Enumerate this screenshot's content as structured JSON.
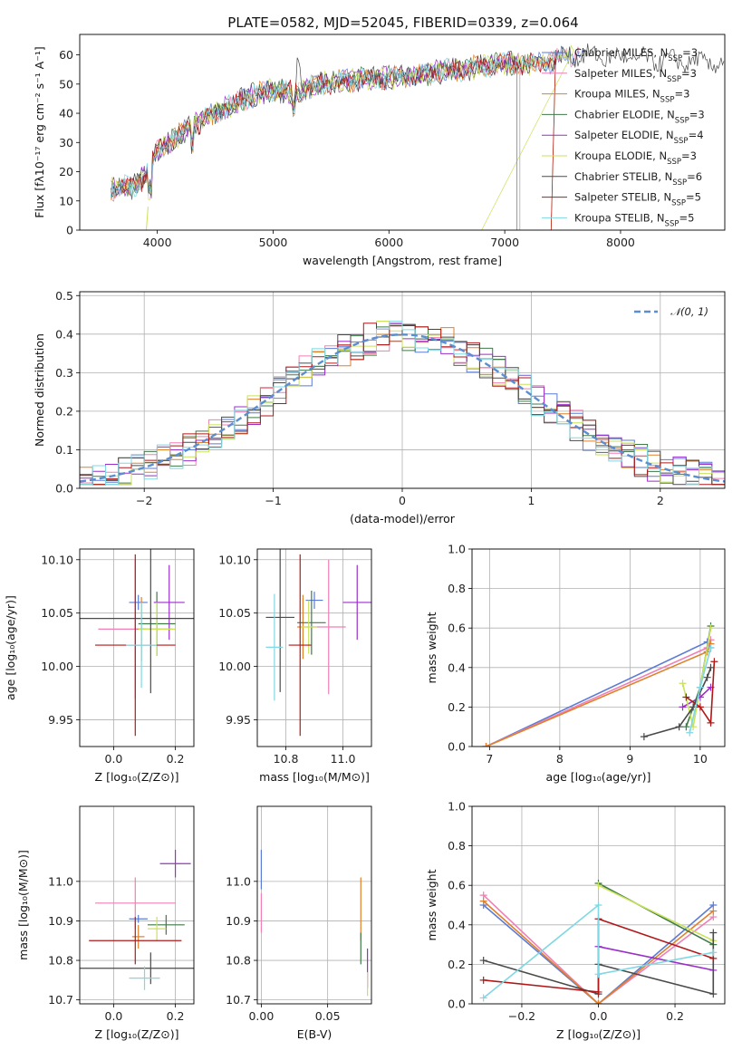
{
  "title": "PLATE=0582, MJD=52045, FIBERID=0339, z=0.064",
  "colors": [
    "#5b7bd5",
    "#f07fb5",
    "#e0802a",
    "#3f7a48",
    "#9b2fc9",
    "#c9e25a",
    "#4a4a4a",
    "#b01818",
    "#7fd8e3"
  ],
  "chart_data": [
    {
      "type": "line",
      "name": "spectrum",
      "xlabel": "wavelength [Angstrom, rest frame]",
      "ylabel": "Flux [fλ10⁻¹⁷ erg cm⁻² s⁻¹ A⁻¹]",
      "xlim": [
        3330,
        8900
      ],
      "ylim": [
        0,
        67
      ],
      "xticks": [
        4000,
        5000,
        6000,
        7000,
        8000
      ],
      "yticks": [
        0,
        10,
        20,
        30,
        40,
        50,
        60
      ],
      "series": [
        {
          "name": "Chabrier MILES, N_SSP=3"
        },
        {
          "name": "Salpeter MILES, N_SSP=3"
        },
        {
          "name": "Kroupa MILES, N_SSP=3"
        },
        {
          "name": "Chabrier ELODIE, N_SSP=3"
        },
        {
          "name": "Salpeter ELODIE, N_SSP=4"
        },
        {
          "name": "Kroupa ELODIE, N_SSP=3"
        },
        {
          "name": "Chabrier STELIB, N_SSP=6"
        },
        {
          "name": "Salpeter STELIB, N_SSP=5"
        },
        {
          "name": "Kroupa STELIB, N_SSP=5"
        }
      ],
      "continuum": [
        [
          3600,
          14
        ],
        [
          3800,
          15
        ],
        [
          3900,
          19
        ],
        [
          4000,
          27
        ],
        [
          4100,
          30
        ],
        [
          4200,
          33
        ],
        [
          4400,
          38
        ],
        [
          4600,
          42
        ],
        [
          4800,
          46
        ],
        [
          5000,
          48
        ],
        [
          5200,
          47
        ],
        [
          5400,
          50
        ],
        [
          5600,
          51
        ],
        [
          5800,
          52
        ],
        [
          6000,
          52
        ],
        [
          6200,
          53
        ],
        [
          6400,
          54
        ],
        [
          6600,
          55
        ],
        [
          6800,
          56
        ],
        [
          7000,
          57
        ],
        [
          7200,
          57
        ],
        [
          7400,
          58
        ],
        [
          7600,
          60
        ],
        [
          8000,
          59
        ],
        [
          8400,
          58
        ],
        [
          8900,
          57
        ]
      ]
    },
    {
      "type": "histogram",
      "name": "residuals",
      "xlabel": "(data-model)/error",
      "ylabel": "Normed distribution",
      "xlim": [
        -2.5,
        2.5
      ],
      "ylim": [
        0,
        0.51
      ],
      "xticks": [
        -2,
        -1,
        0,
        1,
        2
      ],
      "yticks": [
        0,
        0.1,
        0.2,
        0.3,
        0.4,
        0.5
      ],
      "legend": "𝒩(0, 1)",
      "bins": [
        -2.5,
        -2.4,
        -2.3,
        -2.2,
        -2.1,
        -2.0,
        -1.9,
        -1.8,
        -1.7,
        -1.6,
        -1.5,
        -1.4,
        -1.3,
        -1.2,
        -1.1,
        -1.0,
        -0.9,
        -0.8,
        -0.7,
        -0.6,
        -0.5,
        -0.4,
        -0.3,
        -0.2,
        -0.1,
        0.0,
        0.1,
        0.2,
        0.3,
        0.4,
        0.5,
        0.6,
        0.7,
        0.8,
        0.9,
        1.0,
        1.1,
        1.2,
        1.3,
        1.4,
        1.5,
        1.6,
        1.7,
        1.8,
        1.9,
        2.0,
        2.1,
        2.2,
        2.3,
        2.4,
        2.5
      ]
    },
    {
      "type": "errorbar",
      "name": "age-vs-Z",
      "xlabel": "Z [log₁₀(Z/Z⊙)]",
      "ylabel": "age  [log₁₀(age/yr)]",
      "xlim": [
        -0.11,
        0.26
      ],
      "ylim": [
        9.925,
        10.11
      ],
      "xticks": [
        0.0,
        0.2
      ],
      "yticks": [
        9.95,
        10.0,
        10.05,
        10.1
      ],
      "points": [
        {
          "x": 0.08,
          "y": 10.06,
          "xerr": 0.03,
          "yerr": 0.007
        },
        {
          "x": 0.07,
          "y": 10.035,
          "xerr": 0.12,
          "yerr": 0.065
        },
        {
          "x": 0.09,
          "y": 10.035,
          "xerr": 0.015,
          "yerr": 0.03
        },
        {
          "x": 0.14,
          "y": 10.04,
          "xerr": 0.06,
          "yerr": 0.03
        },
        {
          "x": 0.18,
          "y": 10.06,
          "xerr": 0.05,
          "yerr": 0.035
        },
        {
          "x": 0.14,
          "y": 10.035,
          "xerr": 0.06,
          "yerr": 0.025
        },
        {
          "x": 0.12,
          "y": 10.045,
          "xerr": 0.25,
          "yerr": 0.07
        },
        {
          "x": 0.07,
          "y": 10.02,
          "xerr": 0.13,
          "yerr": 0.085
        },
        {
          "x": 0.09,
          "y": 10.02,
          "xerr": 0.05,
          "yerr": 0.04
        }
      ]
    },
    {
      "type": "errorbar",
      "name": "age-vs-mass",
      "xlabel": "mass [log₁₀(M/M⊙)]",
      "ylabel": "",
      "xlim": [
        10.7,
        11.1
      ],
      "ylim": [
        9.925,
        10.11
      ],
      "xticks": [
        10.8,
        11.0
      ],
      "yticks": [
        9.95,
        10.0,
        10.05,
        10.1
      ],
      "points": [
        {
          "x": 10.9,
          "y": 10.062,
          "xerr": 0.03,
          "yerr": 0.008
        },
        {
          "x": 10.95,
          "y": 10.037,
          "xerr": 0.06,
          "yerr": 0.063
        },
        {
          "x": 10.86,
          "y": 10.037,
          "xerr": 0.02,
          "yerr": 0.03
        },
        {
          "x": 10.89,
          "y": 10.041,
          "xerr": 0.05,
          "yerr": 0.03
        },
        {
          "x": 11.05,
          "y": 10.06,
          "xerr": 0.05,
          "yerr": 0.035
        },
        {
          "x": 10.88,
          "y": 10.037,
          "xerr": 0.03,
          "yerr": 0.025
        },
        {
          "x": 10.78,
          "y": 10.046,
          "xerr": 0.05,
          "yerr": 0.07
        },
        {
          "x": 10.85,
          "y": 10.02,
          "xerr": 0.04,
          "yerr": 0.085
        },
        {
          "x": 10.76,
          "y": 10.018,
          "xerr": 0.03,
          "yerr": 0.05
        }
      ]
    },
    {
      "type": "line",
      "name": "weight-vs-age",
      "xlabel": "age  [log₁₀(age/yr)]",
      "ylabel": "mass weight",
      "xlim": [
        6.75,
        10.35
      ],
      "ylim": [
        0,
        1.0
      ],
      "xticks": [
        7,
        8,
        9,
        10
      ],
      "yticks": [
        0.0,
        0.2,
        0.4,
        0.6,
        0.8,
        1.0
      ],
      "series": [
        {
          "points": [
            [
              6.95,
              0.0
            ],
            [
              10.1,
              0.53
            ],
            [
              10.15,
              0.5
            ]
          ]
        },
        {
          "points": [
            [
              6.95,
              0.0
            ],
            [
              10.1,
              0.5
            ],
            [
              10.15,
              0.54
            ]
          ]
        },
        {
          "points": [
            [
              6.95,
              0.0
            ],
            [
              10.1,
              0.48
            ],
            [
              10.15,
              0.52
            ]
          ]
        },
        {
          "points": [
            [
              9.8,
              0.1
            ],
            [
              10.0,
              0.3
            ],
            [
              10.15,
              0.61
            ]
          ]
        },
        {
          "points": [
            [
              9.75,
              0.2
            ],
            [
              10.0,
              0.25
            ],
            [
              10.15,
              0.3
            ]
          ]
        },
        {
          "points": [
            [
              9.75,
              0.32
            ],
            [
              9.9,
              0.1
            ],
            [
              10.15,
              0.6
            ]
          ]
        },
        {
          "points": [
            [
              9.2,
              0.05
            ],
            [
              9.7,
              0.1
            ],
            [
              9.9,
              0.2
            ],
            [
              10.1,
              0.35
            ],
            [
              10.15,
              0.4
            ]
          ]
        },
        {
          "points": [
            [
              9.8,
              0.25
            ],
            [
              10.0,
              0.2
            ],
            [
              10.15,
              0.12
            ],
            [
              10.2,
              0.43
            ]
          ]
        },
        {
          "points": [
            [
              9.85,
              0.07
            ],
            [
              10.0,
              0.3
            ],
            [
              10.15,
              0.5
            ]
          ]
        }
      ]
    },
    {
      "type": "errorbar",
      "name": "mass-vs-Z",
      "xlabel": "Z [log₁₀(Z/Z⊙)]",
      "ylabel": "mass [log₁₀(M/M⊙)]",
      "xlim": [
        -0.11,
        0.26
      ],
      "ylim": [
        10.69,
        11.19
      ],
      "xticks": [
        0.0,
        0.2
      ],
      "yticks": [
        10.7,
        10.8,
        10.9,
        11.0
      ],
      "points": [
        {
          "x": 0.08,
          "y": 10.905,
          "xerr": 0.03,
          "yerr": 0.01
        },
        {
          "x": 0.07,
          "y": 10.945,
          "xerr": 0.13,
          "yerr": 0.065
        },
        {
          "x": 0.08,
          "y": 10.86,
          "xerr": 0.02,
          "yerr": 0.03
        },
        {
          "x": 0.17,
          "y": 10.89,
          "xerr": 0.06,
          "yerr": 0.025
        },
        {
          "x": 0.2,
          "y": 11.045,
          "xerr": 0.05,
          "yerr": 0.035
        },
        {
          "x": 0.14,
          "y": 10.88,
          "xerr": 0.03,
          "yerr": 0.03
        },
        {
          "x": 0.12,
          "y": 10.78,
          "xerr": 0.25,
          "yerr": 0.04
        },
        {
          "x": 0.07,
          "y": 10.85,
          "xerr": 0.15,
          "yerr": 0.06
        },
        {
          "x": 0.1,
          "y": 10.755,
          "xerr": 0.05,
          "yerr": 0.03
        }
      ]
    },
    {
      "type": "errorbar",
      "name": "mass-vs-ebv",
      "xlabel": "E(B-V)",
      "ylabel": "",
      "xlim": [
        -0.003,
        0.083
      ],
      "ylim": [
        10.69,
        11.19
      ],
      "xticks": [
        0.0,
        0.05
      ],
      "yticks": [
        10.7,
        10.8,
        10.9,
        11.0
      ],
      "points": [
        {
          "x": 0.0,
          "y": 11.03,
          "xerr": 0.0,
          "yerr": 0.05
        },
        {
          "x": 0.0,
          "y": 10.92,
          "xerr": 0.0,
          "yerr": 0.05
        },
        {
          "x": 0.075,
          "y": 10.93,
          "xerr": 0.0,
          "yerr": 0.08
        },
        {
          "x": 0.075,
          "y": 10.83,
          "xerr": 0.0,
          "yerr": 0.04
        },
        {
          "x": 0.08,
          "y": 10.78,
          "xerr": 0.0,
          "yerr": 0.05
        },
        {
          "x": 0.08,
          "y": 10.74,
          "xerr": 0.0,
          "yerr": 0.03
        }
      ]
    },
    {
      "type": "line",
      "name": "weight-vs-Z",
      "xlabel": "Z [log₁₀(Z/Z⊙)]",
      "ylabel": "mass weight",
      "xlim": [
        -0.33,
        0.33
      ],
      "ylim": [
        0,
        1.0
      ],
      "xticks": [
        -0.2,
        0.0,
        0.2
      ],
      "yticks": [
        0.0,
        0.2,
        0.4,
        0.6,
        0.8,
        1.0
      ],
      "series": [
        {
          "points": [
            [
              -0.3,
              0.5
            ],
            [
              0.0,
              0.0
            ],
            [
              0.3,
              0.5
            ]
          ]
        },
        {
          "points": [
            [
              -0.3,
              0.55
            ],
            [
              0.0,
              0.0
            ],
            [
              0.3,
              0.44
            ]
          ]
        },
        {
          "points": [
            [
              -0.3,
              0.52
            ],
            [
              0.0,
              0.0
            ],
            [
              0.3,
              0.47
            ]
          ]
        },
        {
          "points": [
            [
              0.0,
              0.61
            ],
            [
              0.3,
              0.3
            ]
          ]
        },
        {
          "points": [
            [
              0.0,
              0.29
            ],
            [
              0.3,
              0.17
            ]
          ]
        },
        {
          "points": [
            [
              0.0,
              0.6
            ],
            [
              0.3,
              0.32
            ]
          ]
        },
        {
          "points": [
            [
              -0.3,
              0.22
            ],
            [
              0.0,
              0.05
            ],
            [
              0.0,
              0.2
            ],
            [
              0.3,
              0.05
            ],
            [
              0.3,
              0.36
            ]
          ]
        },
        {
          "points": [
            [
              -0.3,
              0.12
            ],
            [
              0.0,
              0.06
            ],
            [
              0.0,
              0.43
            ],
            [
              0.3,
              0.23
            ]
          ]
        },
        {
          "points": [
            [
              -0.3,
              0.03
            ],
            [
              0.0,
              0.5
            ],
            [
              0.0,
              0.15
            ],
            [
              0.3,
              0.26
            ]
          ]
        }
      ]
    }
  ]
}
